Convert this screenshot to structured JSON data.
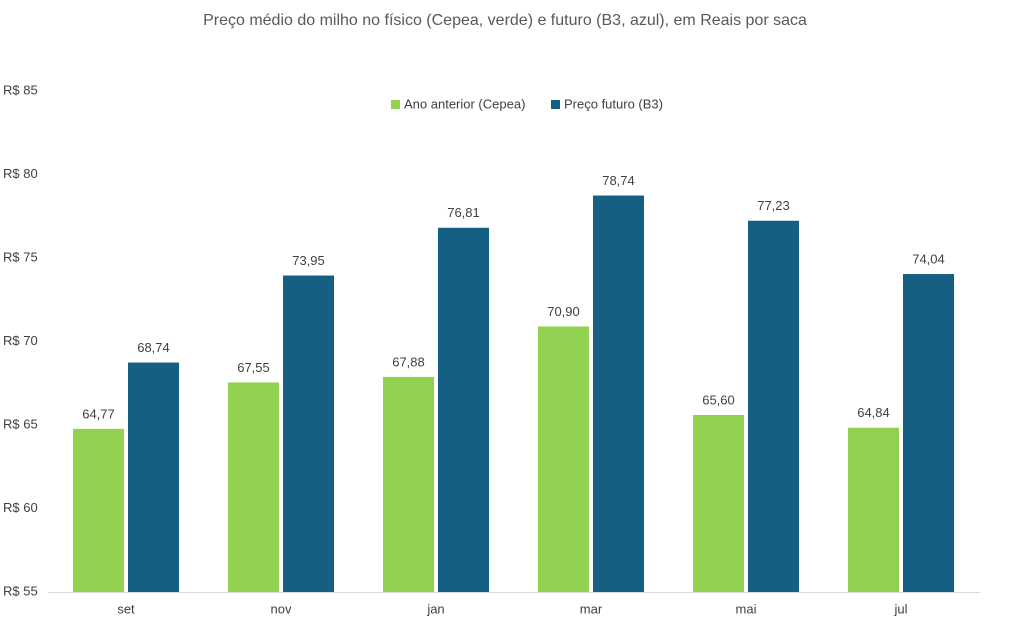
{
  "chart_data": {
    "type": "bar",
    "title": "Preço médio do milho no físico (Cepea, verde) e futuro (B3, azul), em Reais por saca",
    "categories": [
      "set",
      "nov",
      "jan",
      "mar",
      "mai",
      "jul"
    ],
    "series": [
      {
        "name": "Ano anterior (Cepea)",
        "color": "#92d050",
        "values": [
          64.77,
          67.55,
          67.88,
          70.9,
          65.6,
          64.84
        ],
        "value_labels": [
          "64,77",
          "67,55",
          "67,88",
          "70,90",
          "65,60",
          "64,84"
        ]
      },
      {
        "name": "Preço futuro (B3)",
        "color": "#156082",
        "values": [
          68.74,
          73.95,
          76.81,
          78.74,
          77.23,
          74.04
        ],
        "value_labels": [
          "68,74",
          "73,95",
          "76,81",
          "78,74",
          "77,23",
          "74,04"
        ]
      }
    ],
    "ylim": [
      55,
      85
    ],
    "yticks": [
      {
        "value": 55,
        "label": "R$ 55"
      },
      {
        "value": 60,
        "label": "R$ 60"
      },
      {
        "value": 65,
        "label": "R$ 65"
      },
      {
        "value": 70,
        "label": "R$ 70"
      },
      {
        "value": 75,
        "label": "R$ 75"
      },
      {
        "value": 80,
        "label": "R$ 80"
      },
      {
        "value": 85,
        "label": "R$ 85"
      }
    ],
    "grid": false,
    "legend": "top"
  }
}
